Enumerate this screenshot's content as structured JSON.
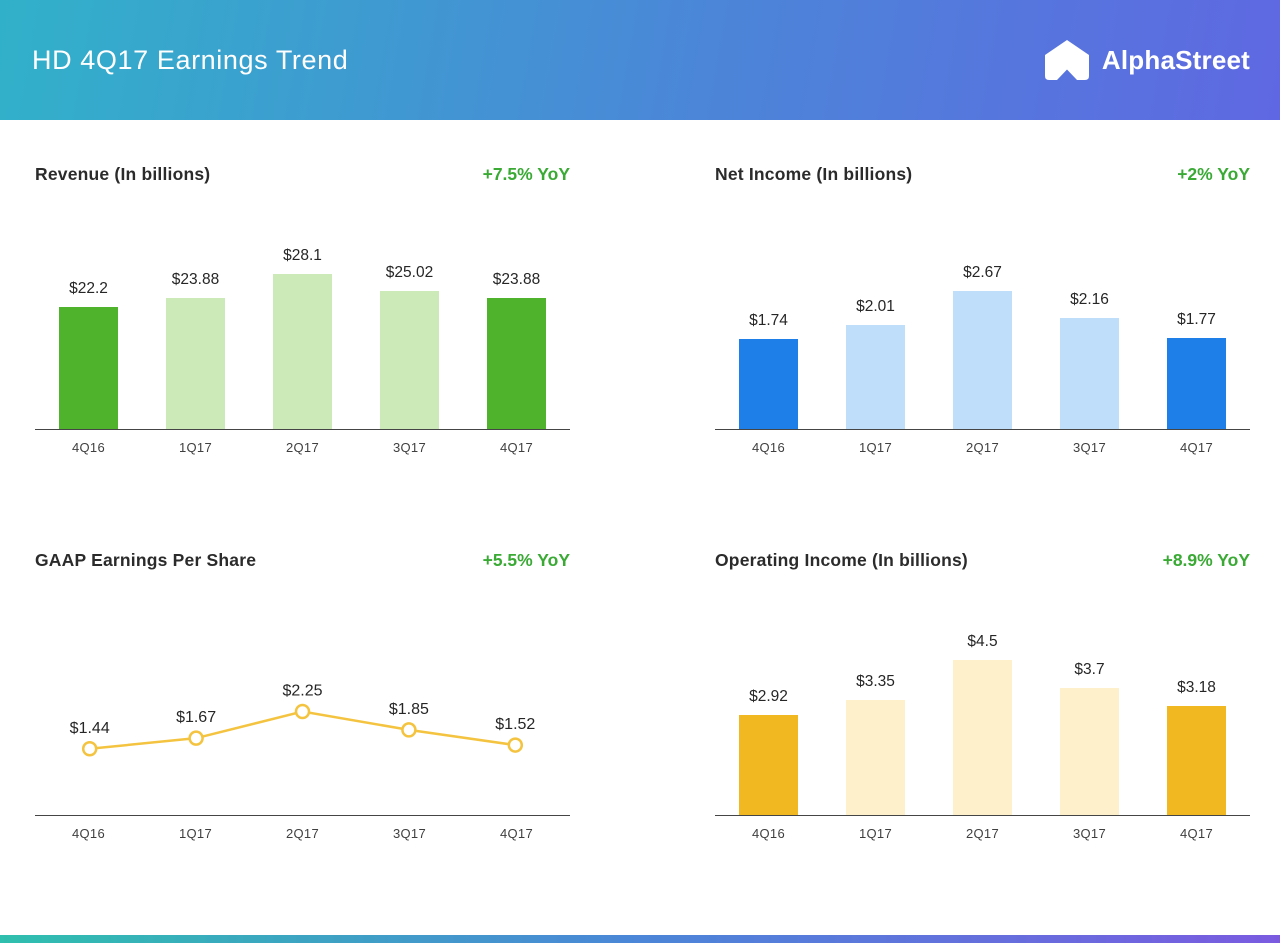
{
  "header": {
    "title": "HD 4Q17 Earnings Trend",
    "brand": "AlphaStreet",
    "logo_icon": "alphastreet-chevron-house-icon"
  },
  "theme": {
    "header_gradient": [
      "#31b1c9",
      "#4b86d8",
      "#5f68e2"
    ],
    "footer_gradient": [
      "#2fbfae",
      "#4b86d8",
      "#7a5be0"
    ],
    "yoy_color": "#3aaa35",
    "axis_color": "#454545",
    "value_label_color": "#262626",
    "tick_label_color": "#3f3f3f"
  },
  "chart_data": [
    {
      "type": "bar",
      "title": "Revenue (In billions)",
      "yoy": "+7.5% YoY",
      "categories": [
        "4Q16",
        "1Q17",
        "2Q17",
        "3Q17",
        "4Q17"
      ],
      "values": [
        22.2,
        23.88,
        28.1,
        25.02,
        23.88
      ],
      "labels": [
        "$22.2",
        "$23.88",
        "$28.1",
        "$25.02",
        "$23.88"
      ],
      "bar_colors": [
        "#4fb32b",
        "#cce9b8",
        "#cce9b8",
        "#cce9b8",
        "#4fb32b"
      ],
      "ylim": [
        0,
        30
      ],
      "grid": false,
      "legend": "none"
    },
    {
      "type": "bar",
      "title": "Net Income (In billions)",
      "yoy": "+2% YoY",
      "categories": [
        "4Q16",
        "1Q17",
        "2Q17",
        "3Q17",
        "4Q17"
      ],
      "values": [
        1.74,
        2.01,
        2.67,
        2.16,
        1.77
      ],
      "labels": [
        "$1.74",
        "$2.01",
        "$2.67",
        "$2.16",
        "$1.77"
      ],
      "bar_colors": [
        "#1e7fe8",
        "#bedef9",
        "#bedef9",
        "#bedef9",
        "#1e7fe8"
      ],
      "ylim": [
        0,
        3.2
      ],
      "grid": false,
      "legend": "none"
    },
    {
      "type": "line",
      "title": "GAAP Earnings Per Share",
      "yoy": "+5.5% YoY",
      "categories": [
        "4Q16",
        "1Q17",
        "2Q17",
        "3Q17",
        "4Q17"
      ],
      "values": [
        1.44,
        1.67,
        2.25,
        1.85,
        1.52
      ],
      "labels": [
        "$1.44",
        "$1.67",
        "$2.25",
        "$1.85",
        "$1.52"
      ],
      "line_color": "#f4c440",
      "marker_fill": "#ffffff",
      "ylim": [
        0,
        5
      ],
      "grid": false,
      "legend": "none"
    },
    {
      "type": "bar",
      "title": "Operating Income (In billions)",
      "yoy": "+8.9% YoY",
      "categories": [
        "4Q16",
        "1Q17",
        "2Q17",
        "3Q17",
        "4Q17"
      ],
      "values": [
        2.92,
        3.35,
        4.5,
        3.7,
        3.18
      ],
      "labels": [
        "$2.92",
        "$3.35",
        "$4.5",
        "$3.7",
        "$3.18"
      ],
      "bar_colors": [
        "#f2b822",
        "#fdf0cb",
        "#fdf0cb",
        "#fdf0cb",
        "#f2b822"
      ],
      "ylim": [
        0,
        4.8
      ],
      "grid": false,
      "legend": "none"
    }
  ]
}
